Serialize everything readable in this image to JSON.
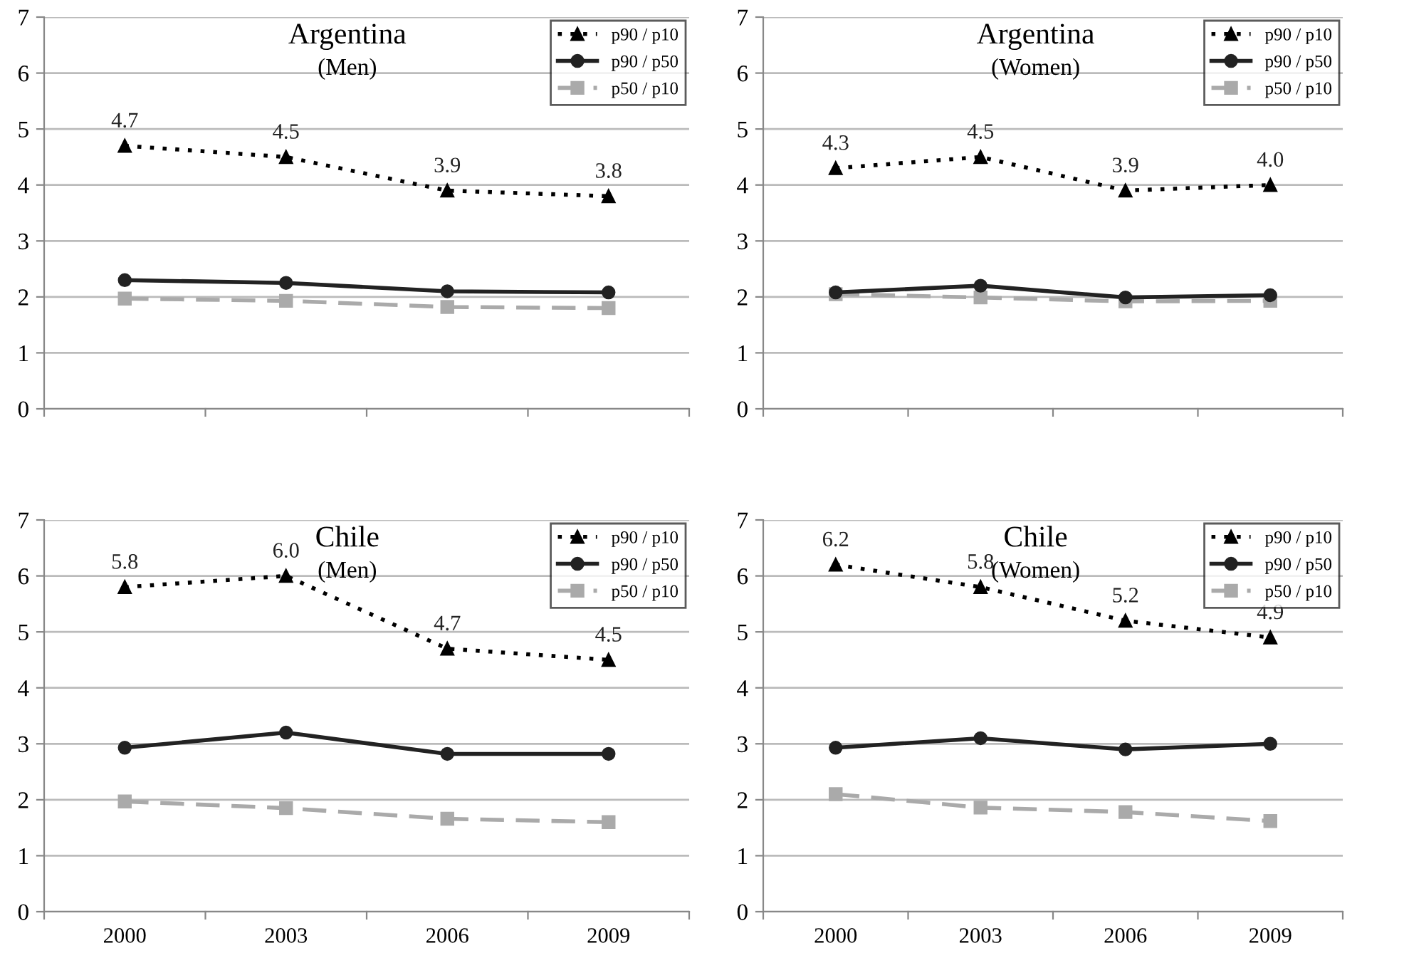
{
  "chart_data": [
    {
      "type": "line",
      "title": "Argentina",
      "subtitle": "(Men)",
      "categories": [
        "2000",
        "2003",
        "2006",
        "2009"
      ],
      "ylim": [
        0,
        7
      ],
      "yticks": [
        0,
        1,
        2,
        3,
        4,
        5,
        6,
        7
      ],
      "grid": "y",
      "legend": "top right",
      "tick_labels": "y",
      "series": [
        {
          "name": "p90 / p10",
          "color": "#000000",
          "marker": "triangle",
          "line_style": "dotted",
          "values": [
            4.7,
            4.5,
            3.9,
            3.8
          ],
          "value_labels": [
            "4.7",
            "4.5",
            "3.9",
            "3.8"
          ]
        },
        {
          "name": "p90 / p50",
          "color": "#222222",
          "marker": "circle",
          "line_style": "solid",
          "values": [
            2.3,
            2.25,
            2.1,
            2.08
          ]
        },
        {
          "name": "p50 / p10",
          "color": "#aaaaaa",
          "marker": "square",
          "line_style": "dashed",
          "values": [
            1.97,
            1.93,
            1.82,
            1.8
          ]
        }
      ]
    },
    {
      "type": "line",
      "title": "Argentina",
      "subtitle": "(Women)",
      "categories": [
        "2000",
        "2003",
        "2006",
        "2009"
      ],
      "ylim": [
        0,
        7
      ],
      "yticks": [
        0,
        1,
        2,
        3,
        4,
        5,
        6,
        7
      ],
      "grid": "y",
      "legend": "top right",
      "tick_labels": "y",
      "series": [
        {
          "name": "p90 / p10",
          "color": "#000000",
          "marker": "triangle",
          "line_style": "dotted",
          "values": [
            4.3,
            4.5,
            3.9,
            4.0
          ],
          "value_labels": [
            "4.3",
            "4.5",
            "3.9",
            "4.0"
          ]
        },
        {
          "name": "p90 / p50",
          "color": "#222222",
          "marker": "circle",
          "line_style": "solid",
          "values": [
            2.08,
            2.2,
            1.99,
            2.03
          ]
        },
        {
          "name": "p50 / p10",
          "color": "#aaaaaa",
          "marker": "square",
          "line_style": "dashed",
          "values": [
            2.05,
            1.99,
            1.92,
            1.93
          ]
        }
      ]
    },
    {
      "type": "line",
      "title": "Chile",
      "subtitle": "(Men)",
      "categories": [
        "2000",
        "2003",
        "2006",
        "2009"
      ],
      "ylim": [
        0,
        7
      ],
      "yticks": [
        0,
        1,
        2,
        3,
        4,
        5,
        6,
        7
      ],
      "grid": "y",
      "legend": "top right",
      "series": [
        {
          "name": "p90 / p10",
          "color": "#000000",
          "marker": "triangle",
          "line_style": "dotted",
          "values": [
            5.8,
            6.0,
            4.7,
            4.5
          ],
          "value_labels": [
            "5.8",
            "6.0",
            "4.7",
            "4.5"
          ]
        },
        {
          "name": "p90 / p50",
          "color": "#222222",
          "marker": "circle",
          "line_style": "solid",
          "values": [
            2.93,
            3.2,
            2.82,
            2.82
          ]
        },
        {
          "name": "p50 / p10",
          "color": "#aaaaaa",
          "marker": "square",
          "line_style": "dashed",
          "values": [
            1.97,
            1.85,
            1.66,
            1.6
          ]
        }
      ]
    },
    {
      "type": "line",
      "title": "Chile",
      "subtitle": "(Women)",
      "categories": [
        "2000",
        "2003",
        "2006",
        "2009"
      ],
      "ylim": [
        0,
        7
      ],
      "yticks": [
        0,
        1,
        2,
        3,
        4,
        5,
        6,
        7
      ],
      "grid": "y",
      "legend": "top right",
      "series": [
        {
          "name": "p90 / p10",
          "color": "#000000",
          "marker": "triangle",
          "line_style": "dotted",
          "values": [
            6.2,
            5.8,
            5.2,
            4.9
          ],
          "value_labels": [
            "6.2",
            "5.8",
            "5.2",
            "4.9"
          ]
        },
        {
          "name": "p90 / p50",
          "color": "#222222",
          "marker": "circle",
          "line_style": "solid",
          "values": [
            2.93,
            3.1,
            2.9,
            3.0
          ]
        },
        {
          "name": "p50 / p10",
          "color": "#aaaaaa",
          "marker": "square",
          "line_style": "dashed",
          "values": [
            2.1,
            1.86,
            1.78,
            1.62
          ]
        }
      ]
    }
  ]
}
